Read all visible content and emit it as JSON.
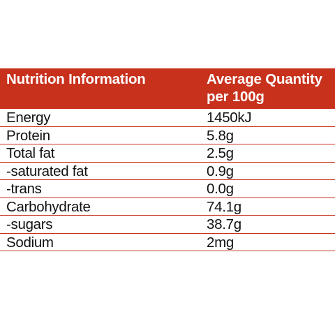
{
  "table": {
    "header": {
      "name_label": "Nutrition Information",
      "value_label": "Average Quantity per 100g"
    },
    "accent_color": "#c8311c",
    "rows": [
      {
        "name": "Energy",
        "value": "1450kJ"
      },
      {
        "name": "Protein",
        "value": "5.8g"
      },
      {
        "name": "Total fat",
        "value": "2.5g"
      },
      {
        "name": "-saturated fat",
        "value": "0.9g"
      },
      {
        "name": "-trans",
        "value": "0.0g"
      },
      {
        "name": "Carbohydrate",
        "value": "74.1g"
      },
      {
        "name": "-sugars",
        "value": "38.7g"
      },
      {
        "name": "Sodium",
        "value": "2mg"
      }
    ]
  }
}
